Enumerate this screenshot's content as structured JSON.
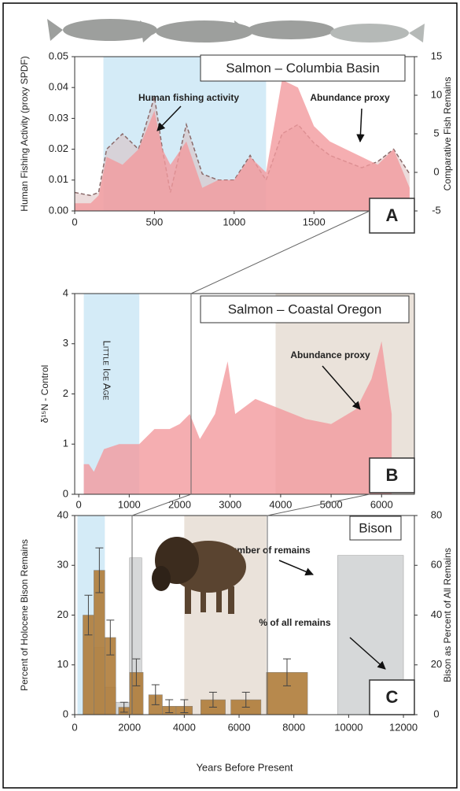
{
  "chart_data": [
    {
      "type": "area",
      "title": "Salmon – Columbia Basin",
      "label": "A",
      "y_label": "Human Fishing Activity (proxy SPDF)",
      "y2_label": "Comparative Fish Remains",
      "x": [
        0,
        100,
        150,
        200,
        300,
        400,
        500,
        550,
        600,
        700,
        800,
        900,
        1000,
        1100,
        1200,
        1300,
        1400,
        1500,
        1600,
        1700,
        1800,
        1900,
        2000,
        2100
      ],
      "series": [
        {
          "name": "Human fishing activity",
          "type": "line",
          "color": "#8a6a6a",
          "values": [
            0.006,
            0.005,
            0.006,
            0.02,
            0.025,
            0.02,
            0.037,
            0.02,
            0.006,
            0.028,
            0.012,
            0.01,
            0.01,
            0.018,
            0.01,
            0.025,
            0.028,
            0.022,
            0.018,
            0.016,
            0.014,
            0.016,
            0.02,
            0.012
          ]
        },
        {
          "name": "Abundance proxy",
          "type": "area",
          "axis": "y2",
          "color": "#f29a9e",
          "values": [
            -4,
            -4,
            -3,
            2,
            1,
            3,
            8,
            3,
            1,
            4,
            -2,
            -1,
            -1,
            2,
            0,
            12,
            11,
            6,
            4,
            3,
            2,
            1,
            3,
            -2
          ]
        }
      ],
      "bands": [
        {
          "range": [
            180,
            1200
          ],
          "color": "#cde8f6"
        }
      ],
      "xlim": [
        0,
        2130
      ],
      "xticks": [
        0,
        500,
        1000,
        1500,
        2000
      ],
      "ylim": [
        0,
        0.05
      ],
      "yticks": [
        {
          "value": 0,
          "label": "0.00"
        },
        0.01,
        0.02,
        0.03,
        0.04,
        0.05
      ],
      "y2lim": [
        -5,
        15
      ],
      "y2ticks": [
        -5,
        0,
        5,
        10,
        15
      ]
    },
    {
      "type": "area",
      "title": "Salmon – Coastal Oregon",
      "label": "B",
      "annotation": "Little Ice Age",
      "y_label": "δ¹⁵N - Control",
      "x": [
        100,
        200,
        300,
        500,
        800,
        1200,
        1500,
        1800,
        2000,
        2200,
        2400,
        2700,
        2950,
        3100,
        3500,
        4000,
        4500,
        5000,
        5500,
        5800,
        6000,
        6200
      ],
      "series": [
        {
          "name": "Abundance proxy",
          "type": "area",
          "color": "#f29a9e",
          "values": [
            0.6,
            0.6,
            0.45,
            0.9,
            1.0,
            1.0,
            1.3,
            1.3,
            1.4,
            1.6,
            1.1,
            1.6,
            2.65,
            1.6,
            1.9,
            1.7,
            1.5,
            1.4,
            1.7,
            2.3,
            3.05,
            1.6
          ]
        }
      ],
      "bands": [
        {
          "range": [
            100,
            1200
          ],
          "color": "#cde8f6"
        },
        {
          "range": [
            3900,
            6650
          ],
          "color": "#e6ddd3"
        }
      ],
      "xlim": [
        -80,
        6650
      ],
      "xticks": [
        0,
        1000,
        2000,
        3000,
        4000,
        5000,
        6000
      ],
      "ylim": [
        0,
        4
      ],
      "yticks": [
        0,
        1,
        2,
        3,
        4
      ]
    },
    {
      "type": "bar",
      "title": "Bison",
      "label": "C",
      "y_label": "Percent of Holocene Bison Remains",
      "y2_label": "Bison as Percent of All Remains",
      "x_label": "Years Before Present",
      "series": [
        {
          "name": "% of all remains",
          "type": "bar",
          "axis": "y2",
          "color": "#c9cbcd",
          "x_ranges": [
            [
              700,
              1100
            ],
            [
              1100,
              1500
            ],
            [
              1500,
              2000
            ],
            [
              2000,
              2450
            ],
            [
              9600,
              12000
            ]
          ],
          "values": [
            27,
            11,
            5,
            63,
            64
          ]
        },
        {
          "name": "Number of remains",
          "type": "bar",
          "color": "#b07d3a",
          "x_ranges": [
            [
              300,
              700
            ],
            [
              700,
              1100
            ],
            [
              1100,
              1500
            ],
            [
              1600,
              2000
            ],
            [
              2000,
              2500
            ],
            [
              2700,
              3200
            ],
            [
              3200,
              3700
            ],
            [
              3700,
              4300
            ],
            [
              4600,
              5500
            ],
            [
              5700,
              6800
            ],
            [
              7000,
              8500
            ]
          ],
          "values": [
            20,
            29,
            15.5,
            1.5,
            8.5,
            4,
            1.7,
            1.7,
            3,
            3,
            8.5
          ],
          "errors": [
            4,
            4.5,
            3.5,
            1,
            2.7,
            2,
            1.3,
            1.3,
            1.5,
            1.5,
            2.7
          ]
        }
      ],
      "bands": [
        {
          "range": [
            100,
            1100
          ],
          "color": "#cde8f6"
        },
        {
          "range": [
            4000,
            7000
          ],
          "color": "#e6ddd3"
        }
      ],
      "xlim": [
        0,
        12400
      ],
      "xticks": [
        0,
        2000,
        4000,
        6000,
        8000,
        10000,
        12000
      ],
      "ylim": [
        0,
        40
      ],
      "yticks": [
        0,
        10,
        20,
        30,
        40
      ],
      "y2lim": [
        0,
        80
      ],
      "y2ticks": [
        0,
        20,
        40,
        60,
        80
      ]
    }
  ]
}
